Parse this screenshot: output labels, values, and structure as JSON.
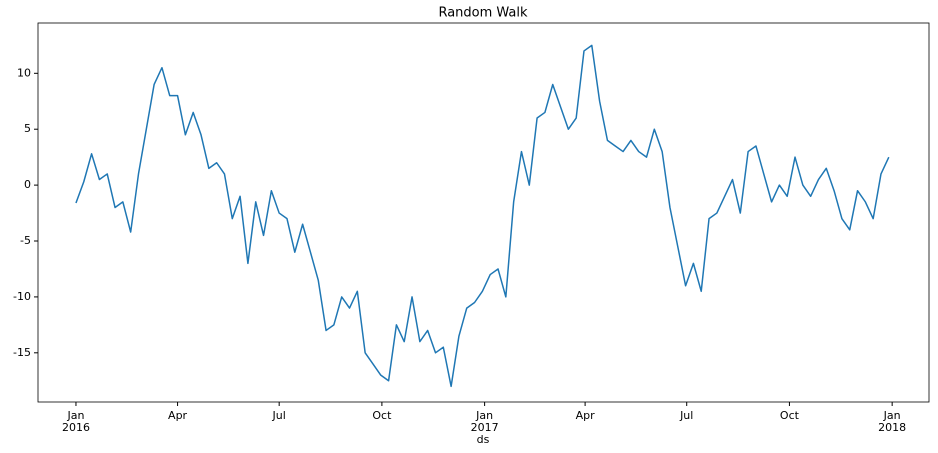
{
  "chart_data": {
    "type": "line",
    "title": "Random Walk",
    "x_label": "ds",
    "x": [
      "2016-01-01",
      "2016-01-08",
      "2016-01-15",
      "2016-01-22",
      "2016-01-29",
      "2016-02-05",
      "2016-02-12",
      "2016-02-19",
      "2016-02-26",
      "2016-03-04",
      "2016-03-11",
      "2016-03-18",
      "2016-03-25",
      "2016-04-01",
      "2016-04-08",
      "2016-04-15",
      "2016-04-22",
      "2016-04-29",
      "2016-05-06",
      "2016-05-13",
      "2016-05-20",
      "2016-05-27",
      "2016-06-03",
      "2016-06-10",
      "2016-06-17",
      "2016-06-24",
      "2016-07-01",
      "2016-07-08",
      "2016-07-15",
      "2016-07-22",
      "2016-07-29",
      "2016-08-05",
      "2016-08-12",
      "2016-08-19",
      "2016-08-26",
      "2016-09-02",
      "2016-09-09",
      "2016-09-16",
      "2016-09-23",
      "2016-09-30",
      "2016-10-07",
      "2016-10-14",
      "2016-10-21",
      "2016-10-28",
      "2016-11-04",
      "2016-11-11",
      "2016-11-18",
      "2016-11-25",
      "2016-12-02",
      "2016-12-09",
      "2016-12-16",
      "2016-12-23",
      "2016-12-30",
      "2017-01-06",
      "2017-01-13",
      "2017-01-20",
      "2017-01-27",
      "2017-02-03",
      "2017-02-10",
      "2017-02-17",
      "2017-02-24",
      "2017-03-03",
      "2017-03-10",
      "2017-03-17",
      "2017-03-24",
      "2017-03-31",
      "2017-04-07",
      "2017-04-14",
      "2017-04-21",
      "2017-04-28",
      "2017-05-05",
      "2017-05-12",
      "2017-05-19",
      "2017-05-26",
      "2017-06-02",
      "2017-06-09",
      "2017-06-16",
      "2017-06-23",
      "2017-06-30",
      "2017-07-07",
      "2017-07-14",
      "2017-07-21",
      "2017-07-28",
      "2017-08-04",
      "2017-08-11",
      "2017-08-18",
      "2017-08-25",
      "2017-09-01",
      "2017-09-08",
      "2017-09-15",
      "2017-09-22",
      "2017-09-29",
      "2017-10-06",
      "2017-10-13",
      "2017-10-20",
      "2017-10-27",
      "2017-11-03",
      "2017-11-10",
      "2017-11-17",
      "2017-11-24",
      "2017-12-01",
      "2017-12-08",
      "2017-12-15",
      "2017-12-22",
      "2017-12-29"
    ],
    "series": [
      {
        "color": "#1f77b4",
        "values": [
          -1.6,
          0.3,
          2.8,
          0.5,
          1.0,
          -2,
          -1.5,
          -4.2,
          1,
          5,
          9,
          10.5,
          8,
          8,
          4.5,
          6.5,
          4.5,
          1.5,
          2,
          1,
          -3,
          -1,
          -7,
          -1.5,
          -4.5,
          -0.5,
          -2.5,
          -3,
          -6,
          -3.5,
          -6,
          -8.5,
          -13,
          -12.5,
          -10,
          -11,
          -9.5,
          -15,
          -16,
          -17,
          -17.5,
          -12.5,
          -14,
          -10,
          -14,
          -13,
          -15,
          -14.5,
          -18,
          -13.5,
          -11,
          -10.5,
          -9.5,
          -8,
          -7.5,
          -10,
          -1.5,
          3,
          0,
          6,
          6.5,
          9,
          7,
          5,
          6,
          12,
          12.5,
          7.5,
          4,
          3.5,
          3,
          4,
          3,
          2.5,
          5,
          3,
          -2,
          -5.5,
          -9,
          -7,
          -9.5,
          -3,
          -2.5,
          -1,
          0.5,
          -2.5,
          3,
          3.5,
          1,
          -1.5,
          0,
          -1,
          2.5,
          0,
          -1,
          0.5,
          1.5,
          -0.5,
          -3,
          -4,
          -0.5,
          -1.5,
          -3,
          1,
          2.5
        ]
      }
    ],
    "xlim": [
      "2015-11-28",
      "2018-02-03"
    ],
    "xticks": [
      {
        "value": "2016-01-01",
        "label": [
          "Jan",
          "2016"
        ]
      },
      {
        "value": "2016-04-01",
        "label": [
          "Apr"
        ]
      },
      {
        "value": "2016-07-01",
        "label": [
          "Jul"
        ]
      },
      {
        "value": "2016-10-01",
        "label": [
          "Oct"
        ]
      },
      {
        "value": "2017-01-01",
        "label": [
          "Jan",
          "2017"
        ]
      },
      {
        "value": "2017-04-01",
        "label": [
          "Apr"
        ]
      },
      {
        "value": "2017-07-01",
        "label": [
          "Jul"
        ]
      },
      {
        "value": "2017-10-01",
        "label": [
          "Oct"
        ]
      },
      {
        "value": "2018-01-01",
        "label": [
          "Jan",
          "2018"
        ]
      }
    ],
    "ylim": [
      -19.4,
      14.5
    ],
    "yticks": [
      -15,
      -10,
      -5,
      0,
      5,
      10
    ],
    "grid": false
  }
}
